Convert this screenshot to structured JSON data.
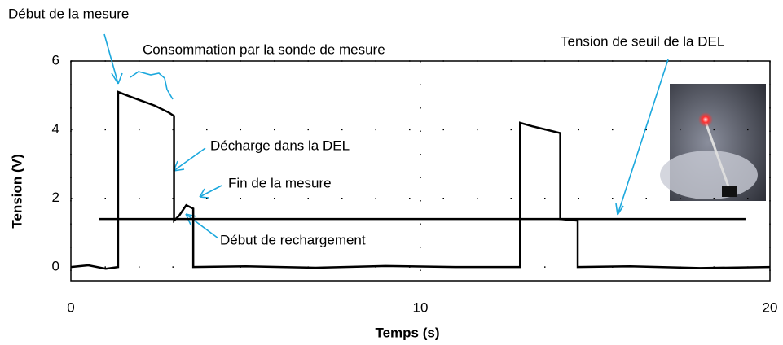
{
  "chart_data": {
    "type": "line",
    "xlabel": "Temps (s)",
    "ylabel": "Tension (V)",
    "xlim": [
      0,
      20
    ],
    "ylim": [
      -0.4,
      6
    ],
    "xticks": [
      0,
      10,
      20
    ],
    "yticks": [
      0,
      2,
      4,
      6
    ],
    "grid": true,
    "series": [
      {
        "color": "#000000",
        "x": [
          0,
          0.5,
          1,
          1.35,
          1.35,
          1.6,
          2,
          2.4,
          2.8,
          2.95,
          2.95,
          3.1,
          3.3,
          3.5,
          3.5,
          5,
          7,
          9,
          11,
          12.85,
          12.85,
          13.2,
          13.6,
          14,
          14,
          14.5,
          14.5,
          16,
          18,
          20
        ],
        "values": [
          0,
          0.05,
          -0.05,
          0,
          5.1,
          5.0,
          4.85,
          4.7,
          4.5,
          4.4,
          1.35,
          1.5,
          1.8,
          1.7,
          0,
          0.02,
          -0.02,
          0.03,
          0,
          0,
          4.2,
          4.1,
          4.0,
          3.9,
          1.4,
          1.35,
          0,
          0.02,
          -0.03,
          0
        ]
      },
      {
        "color": "#000000",
        "x": [
          0.8,
          19.3
        ],
        "values": [
          1.4,
          1.4
        ]
      }
    ],
    "annotations": [
      {
        "text": "Début de la mesure"
      },
      {
        "text": "Consommation par la sonde de mesure"
      },
      {
        "text": "Décharge dans la DEL"
      },
      {
        "text": "Fin de la mesure"
      },
      {
        "text": "Début de rechargement"
      },
      {
        "text": "Tension de seuil de la DEL"
      }
    ]
  }
}
